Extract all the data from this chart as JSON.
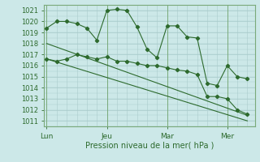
{
  "bg_color": "#cce8e8",
  "grid_color": "#aacccc",
  "line_color": "#2d6a2d",
  "marker_color": "#2d6a2d",
  "xlabel": "Pression niveau de la mer( hPa )",
  "ylim": [
    1010.5,
    1021.5
  ],
  "yticks": [
    1011,
    1012,
    1013,
    1014,
    1015,
    1016,
    1017,
    1018,
    1019,
    1020,
    1021
  ],
  "xtick_labels": [
    "Lun",
    "Jeu",
    "Mar",
    "Mer"
  ],
  "xtick_positions": [
    0,
    24,
    48,
    72
  ],
  "vline_positions": [
    0,
    24,
    48,
    72
  ],
  "series1_x": [
    0,
    4,
    8,
    12,
    16,
    20,
    24,
    28,
    32,
    36,
    40,
    44,
    48,
    52,
    56,
    60,
    64,
    68,
    72,
    76,
    80
  ],
  "series1_y": [
    1019.4,
    1020.0,
    1020.0,
    1019.8,
    1019.4,
    1018.3,
    1021.0,
    1021.1,
    1021.0,
    1019.5,
    1017.5,
    1016.7,
    1019.6,
    1019.6,
    1018.6,
    1018.5,
    1014.4,
    1014.2,
    1016.0,
    1015.0,
    1014.8
  ],
  "series2_x": [
    0,
    4,
    8,
    12,
    16,
    20,
    24,
    28,
    32,
    36,
    40,
    44,
    48,
    52,
    56,
    60,
    64,
    68,
    72,
    76,
    80
  ],
  "series2_y": [
    1016.6,
    1016.4,
    1016.6,
    1017.0,
    1016.8,
    1016.6,
    1016.8,
    1016.4,
    1016.4,
    1016.2,
    1016.0,
    1016.0,
    1015.8,
    1015.6,
    1015.5,
    1015.2,
    1013.2,
    1013.2,
    1013.0,
    1012.0,
    1011.6
  ],
  "series3_x": [
    0,
    80
  ],
  "series3_y": [
    1018.0,
    1011.5
  ],
  "series4_x": [
    0,
    80
  ],
  "series4_y": [
    1016.6,
    1011.0
  ],
  "xlim": [
    -1,
    83
  ]
}
